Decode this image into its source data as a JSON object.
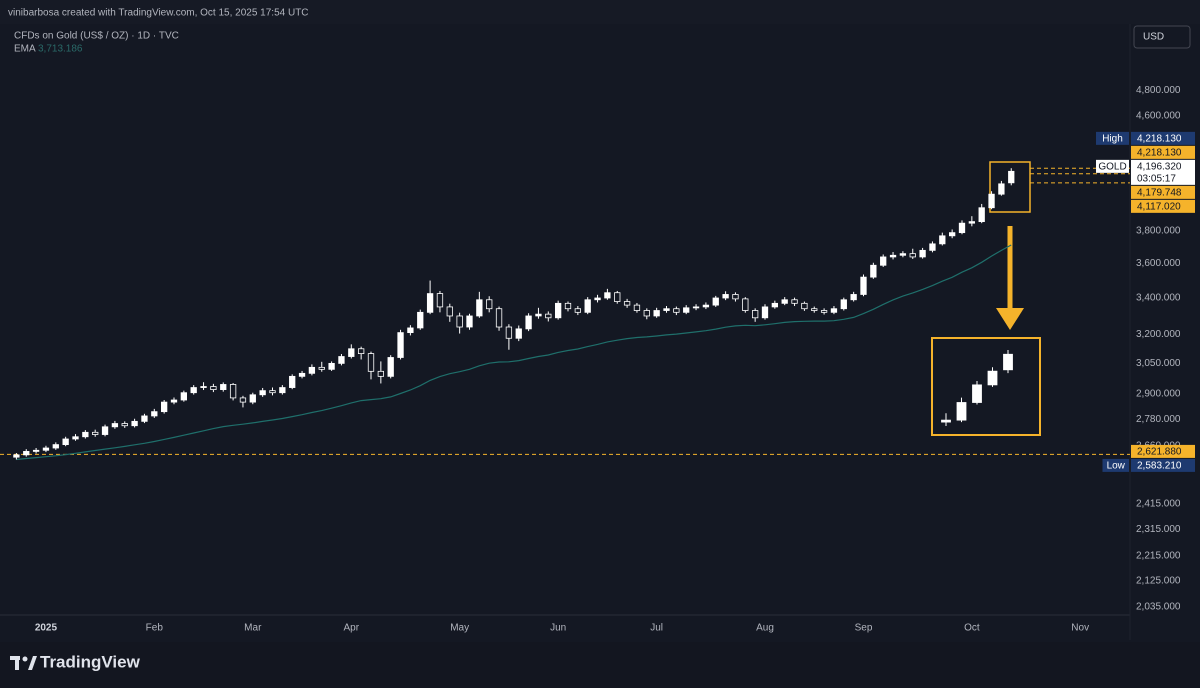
{
  "chart_data": {
    "type": "candlestick",
    "created_by": "vinibarbosa created with TradingView.com, Oct 15, 2025 17:54 UTC",
    "symbol": "CFDs on Gold (US$ / OZ) · 1D · TVC",
    "currency": "USD",
    "brand": "TradingView",
    "log_scale": true,
    "grid": false,
    "up_color": "#ffffff",
    "down_color": "#141823",
    "ylim": [
      2008,
      5360
    ],
    "yticks": [
      {
        "value": 4800,
        "label": "4,800.000"
      },
      {
        "value": 4600,
        "label": "4,600.000"
      },
      {
        "value": 3800,
        "label": "3,800.000"
      },
      {
        "value": 3600,
        "label": "3,600.000"
      },
      {
        "value": 3400,
        "label": "3,400.000"
      },
      {
        "value": 3200,
        "label": "3,200.000"
      },
      {
        "value": 3050,
        "label": "3,050.000"
      },
      {
        "value": 2900,
        "label": "2,900.000"
      },
      {
        "value": 2780,
        "label": "2,780.000"
      },
      {
        "value": 2660,
        "label": "2,660.000"
      },
      {
        "value": 2415,
        "label": "2,415.000"
      },
      {
        "value": 2315,
        "label": "2,315.000"
      },
      {
        "value": 2215,
        "label": "2,215.000"
      },
      {
        "value": 2125,
        "label": "2,125.000"
      },
      {
        "value": 2035,
        "label": "2,035.000"
      }
    ],
    "categories": [
      null,
      null,
      null,
      "2025",
      null,
      null,
      null,
      null,
      null,
      null,
      null,
      null,
      null,
      null,
      "Feb",
      null,
      null,
      null,
      null,
      null,
      null,
      null,
      null,
      null,
      "Mar",
      null,
      null,
      null,
      null,
      null,
      null,
      null,
      null,
      null,
      "Apr",
      null,
      null,
      null,
      null,
      null,
      null,
      null,
      null,
      null,
      null,
      "May",
      null,
      null,
      null,
      null,
      null,
      null,
      null,
      null,
      null,
      "Jun",
      null,
      null,
      null,
      null,
      null,
      null,
      null,
      null,
      null,
      "Jul",
      null,
      null,
      null,
      null,
      null,
      null,
      null,
      null,
      null,
      null,
      "Aug",
      null,
      null,
      null,
      null,
      null,
      null,
      null,
      null,
      null,
      "Sep",
      null,
      null,
      null,
      null,
      null,
      null,
      null,
      null,
      null,
      null,
      "Oct",
      null,
      null,
      null,
      null,
      null,
      null,
      null,
      null,
      null,
      null,
      "Nov"
    ],
    "open": [
      2610,
      2620,
      2635,
      2640,
      2650,
      2665,
      2690,
      2700,
      2720,
      2710,
      2745,
      2760,
      2750,
      2770,
      2795,
      2815,
      2860,
      2870,
      2905,
      2930,
      2935,
      2920,
      2945,
      2880,
      2860,
      2895,
      2915,
      2905,
      2930,
      2985,
      3000,
      3030,
      3020,
      3050,
      3085,
      3125,
      3100,
      3010,
      2985,
      3080,
      3210,
      3235,
      3320,
      3425,
      3350,
      3300,
      3240,
      3300,
      3390,
      3340,
      3240,
      3180,
      3230,
      3300,
      3310,
      3290,
      3370,
      3340,
      3320,
      3390,
      3400,
      3430,
      3380,
      3360,
      3330,
      3300,
      3330,
      3340,
      3320,
      3345,
      3350,
      3360,
      3400,
      3420,
      3395,
      3330,
      3290,
      3350,
      3370,
      3390,
      3370,
      3340,
      3330,
      3320,
      3340,
      3390,
      3420,
      3520,
      3590,
      3640,
      3650,
      3660,
      3640,
      3680,
      3720,
      3770,
      3790,
      3850,
      3860,
      3950,
      4040,
      4117.02,
      null,
      null,
      null,
      null,
      null,
      null,
      null
    ],
    "high": [
      2628,
      2645,
      2650,
      2660,
      2675,
      2700,
      2712,
      2730,
      2732,
      2755,
      2772,
      2770,
      2782,
      2805,
      2828,
      2870,
      2882,
      2915,
      2942,
      2956,
      2948,
      2955,
      2952,
      2890,
      2905,
      2928,
      2930,
      2942,
      2995,
      3012,
      3045,
      3058,
      3060,
      3098,
      3148,
      3136,
      3110,
      3060,
      3092,
      3225,
      3250,
      3335,
      3500,
      3440,
      3368,
      3318,
      3312,
      3435,
      3410,
      3352,
      3255,
      3248,
      3315,
      3345,
      3325,
      3385,
      3380,
      3355,
      3405,
      3418,
      3452,
      3440,
      3395,
      3372,
      3342,
      3345,
      3355,
      3352,
      3360,
      3365,
      3375,
      3412,
      3438,
      3432,
      3405,
      3342,
      3365,
      3385,
      3405,
      3402,
      3380,
      3352,
      3342,
      3355,
      3402,
      3435,
      3535,
      3605,
      3655,
      3670,
      3675,
      3690,
      3695,
      3735,
      3790,
      3810,
      3868,
      3895,
      3975,
      4060,
      4130,
      4218.13,
      null,
      null,
      null,
      null,
      null,
      null,
      null
    ],
    "low": [
      2600,
      2612,
      2626,
      2632,
      2642,
      2658,
      2682,
      2692,
      2700,
      2702,
      2736,
      2740,
      2742,
      2762,
      2786,
      2806,
      2850,
      2862,
      2896,
      2918,
      2908,
      2910,
      2868,
      2835,
      2850,
      2885,
      2892,
      2896,
      2922,
      2975,
      2990,
      3008,
      3012,
      3040,
      3075,
      3070,
      2970,
      2950,
      2975,
      3070,
      3195,
      3225,
      3310,
      3320,
      3268,
      3205,
      3225,
      3290,
      3320,
      3220,
      3120,
      3165,
      3218,
      3285,
      3270,
      3280,
      3325,
      3305,
      3310,
      3375,
      3390,
      3368,
      3345,
      3318,
      3282,
      3290,
      3318,
      3305,
      3310,
      3332,
      3338,
      3350,
      3388,
      3380,
      3318,
      3268,
      3280,
      3340,
      3360,
      3355,
      3328,
      3318,
      3308,
      3310,
      3330,
      3380,
      3410,
      3510,
      3580,
      3625,
      3638,
      3628,
      3630,
      3668,
      3710,
      3755,
      3780,
      3830,
      3850,
      3940,
      4030,
      4100,
      null,
      null,
      null,
      null,
      null,
      null,
      null
    ],
    "close": [
      2620,
      2635,
      2640,
      2650,
      2665,
      2690,
      2700,
      2720,
      2710,
      2745,
      2760,
      2750,
      2770,
      2795,
      2815,
      2860,
      2870,
      2905,
      2930,
      2935,
      2920,
      2945,
      2880,
      2860,
      2895,
      2915,
      2905,
      2930,
      2985,
      3000,
      3030,
      3020,
      3050,
      3085,
      3125,
      3100,
      3010,
      2985,
      3080,
      3210,
      3235,
      3320,
      3425,
      3350,
      3300,
      3240,
      3300,
      3390,
      3340,
      3240,
      3180,
      3230,
      3300,
      3310,
      3290,
      3370,
      3340,
      3320,
      3390,
      3400,
      3430,
      3380,
      3360,
      3330,
      3300,
      3330,
      3340,
      3320,
      3345,
      3350,
      3360,
      3400,
      3420,
      3395,
      3330,
      3290,
      3350,
      3370,
      3390,
      3370,
      3340,
      3330,
      3320,
      3340,
      3390,
      3420,
      3520,
      3590,
      3640,
      3650,
      3660,
      3640,
      3680,
      3720,
      3770,
      3790,
      3850,
      3860,
      3950,
      4040,
      4110,
      4196.32,
      null,
      null,
      null,
      null,
      null,
      null,
      null
    ],
    "ema": {
      "name": "EMA",
      "color": "#1f6f6b",
      "value_label": "3,713.186",
      "values": [
        2600,
        2604,
        2608,
        2612,
        2616,
        2621,
        2627,
        2633,
        2639,
        2645,
        2651,
        2657,
        2664,
        2671,
        2679,
        2688,
        2697,
        2707,
        2717,
        2727,
        2737,
        2746,
        2752,
        2757,
        2763,
        2770,
        2776,
        2783,
        2792,
        2801,
        2811,
        2820,
        2831,
        2843,
        2856,
        2867,
        2872,
        2876,
        2885,
        2901,
        2918,
        2939,
        2965,
        2984,
        2998,
        3008,
        3020,
        3038,
        3051,
        3057,
        3058,
        3064,
        3075,
        3085,
        3093,
        3106,
        3116,
        3124,
        3136,
        3148,
        3161,
        3170,
        3178,
        3184,
        3187,
        3192,
        3198,
        3202,
        3208,
        3214,
        3220,
        3229,
        3239,
        3246,
        3249,
        3247,
        3252,
        3258,
        3265,
        3269,
        3271,
        3272,
        3272,
        3274,
        3282,
        3292,
        3313,
        3337,
        3364,
        3389,
        3411,
        3429,
        3449,
        3471,
        3496,
        3519,
        3549,
        3575,
        3608,
        3645,
        3680,
        3713.186,
        null,
        null,
        null,
        null,
        null,
        null,
        null
      ]
    },
    "price_markers": [
      {
        "tag": "High",
        "value": 4218.13,
        "label": "4,218.130",
        "color": "#1e3a70"
      },
      {
        "value": 4218.13,
        "label": "4,218.130",
        "color": "#f5b32b",
        "line": "short"
      },
      {
        "tag": "GOLD",
        "value": 4196.32,
        "label": "4,196.320",
        "countdown": "03:05:17",
        "color": "#ffffff"
      },
      {
        "value": 4179.748,
        "label": "4,179.748",
        "color": "#f5b32b",
        "line": "short"
      },
      {
        "value": 4117.02,
        "label": "4,117.020",
        "color": "#f5b32b",
        "line": "short"
      },
      {
        "value": 2621.88,
        "label": "2,621.880",
        "color": "#f5b32b",
        "line": "full"
      },
      {
        "tag": "Low",
        "value": 2583.21,
        "label": "2,583.210",
        "color": "#1e3a70"
      }
    ]
  }
}
